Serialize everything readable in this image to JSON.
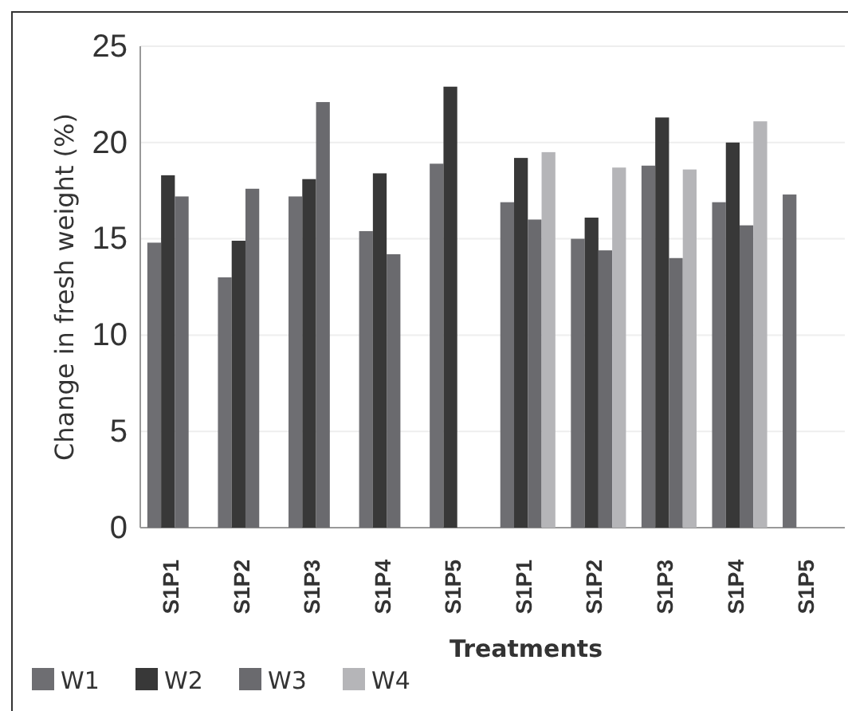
{
  "chart_data": {
    "type": "bar",
    "xlabel": "Treatments",
    "ylabel": "Change in fresh weight (%)",
    "categories": [
      "S1P1",
      "S1P2",
      "S1P3",
      "S1P4",
      "S1P5",
      "S1P1",
      "S1P2",
      "S1P3",
      "S1P4",
      "S1P5"
    ],
    "series": [
      {
        "name": "W1",
        "color": "#6e6e72",
        "values": [
          14.8,
          13.0,
          17.2,
          15.4,
          18.9,
          16.9,
          15.0,
          18.8,
          16.9,
          17.3
        ]
      },
      {
        "name": "W2",
        "color": "#383838",
        "values": [
          18.3,
          14.9,
          18.1,
          18.4,
          22.9,
          19.2,
          16.1,
          21.3,
          20.0,
          null
        ]
      },
      {
        "name": "W3",
        "color": "#6a6a6e",
        "values": [
          17.2,
          17.6,
          22.1,
          14.2,
          null,
          16.0,
          14.4,
          14.0,
          15.7,
          null
        ]
      },
      {
        "name": "W4",
        "color": "#b5b5b8",
        "values": [
          null,
          null,
          null,
          null,
          null,
          19.5,
          18.7,
          18.6,
          21.1,
          null
        ]
      }
    ],
    "ylim": [
      0,
      25
    ],
    "yticks": [
      0,
      5,
      10,
      15,
      20,
      25
    ],
    "grid": "y",
    "legend": "bottom left"
  }
}
